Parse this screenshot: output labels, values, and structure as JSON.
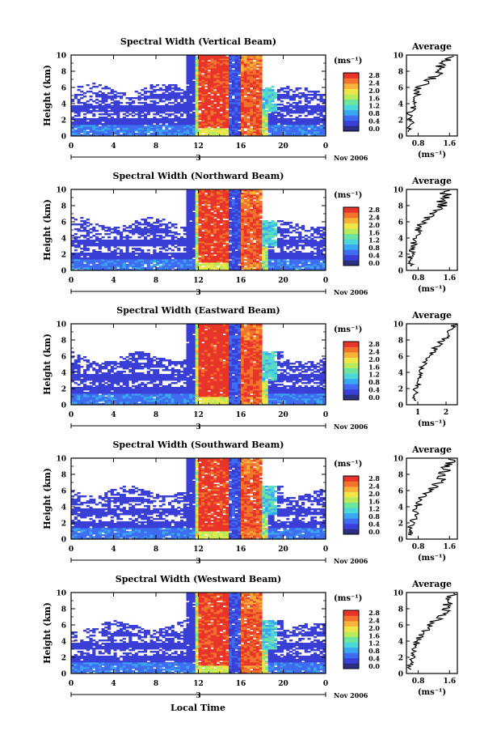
{
  "figure": {
    "xlabel_bottom": "Local Time",
    "avg_title": "Average",
    "units": "(ms⁻¹)",
    "date_label": "Nov 2006",
    "day_label": "3",
    "height_label": "Height (km)"
  },
  "colorbar": {
    "ticks": [
      "2.8",
      "2.4",
      "2.0",
      "1.6",
      "1.2",
      "0.8",
      "0.4",
      "0.0"
    ],
    "colors": [
      "#2b2f7f",
      "#3a3fd6",
      "#3f6cf0",
      "#3aa8f0",
      "#4fd6d9",
      "#6fe3a0",
      "#b8ec5c",
      "#f0e64a",
      "#f7b23a",
      "#f2742c",
      "#e8352a"
    ]
  },
  "chart_data": [
    {
      "type": "heatmap",
      "title": "Spectral Width (Vertical Beam)",
      "x_axis": {
        "range": [
          0,
          24
        ],
        "ticks": [
          "0",
          "4",
          "8",
          "12",
          "16",
          "20",
          "0"
        ],
        "label": "Local Time"
      },
      "y_axis": {
        "range": [
          0,
          10
        ],
        "ticks": [
          "0",
          "2",
          "4",
          "6",
          "8",
          "10"
        ],
        "label": "Height (km)"
      },
      "colorbar": {
        "range": [
          0.0,
          2.8
        ],
        "unit": "(ms⁻¹)"
      },
      "average": {
        "xticks": [
          "0.8",
          "1.6"
        ],
        "xrange": [
          0.5,
          1.8
        ],
        "xlabel": "(ms⁻¹)",
        "title": "Average",
        "profile": [
          {
            "h": 0.5,
            "v": 0.6
          },
          {
            "h": 1,
            "v": 0.55
          },
          {
            "h": 1.5,
            "v": 0.65
          },
          {
            "h": 2,
            "v": 0.6
          },
          {
            "h": 2.5,
            "v": 0.62
          },
          {
            "h": 3,
            "v": 0.6
          },
          {
            "h": 3.5,
            "v": 0.7
          },
          {
            "h": 4,
            "v": 0.65
          },
          {
            "h": 4.5,
            "v": 0.72
          },
          {
            "h": 5,
            "v": 0.75
          },
          {
            "h": 5.5,
            "v": 0.8
          },
          {
            "h": 6,
            "v": 0.85
          },
          {
            "h": 6.5,
            "v": 0.95
          },
          {
            "h": 7,
            "v": 1.1
          },
          {
            "h": 7.5,
            "v": 1.25
          },
          {
            "h": 8,
            "v": 1.4
          },
          {
            "h": 8.5,
            "v": 1.35
          },
          {
            "h": 9,
            "v": 1.5
          },
          {
            "h": 9.5,
            "v": 1.6
          },
          {
            "h": 10,
            "v": 1.7
          }
        ]
      }
    },
    {
      "type": "heatmap",
      "title": "Spectral Width (Northward Beam)",
      "x_axis": {
        "range": [
          0,
          24
        ],
        "ticks": [
          "0",
          "4",
          "8",
          "12",
          "16",
          "20",
          "0"
        ],
        "label": "Local Time"
      },
      "y_axis": {
        "range": [
          0,
          10
        ],
        "ticks": [
          "0",
          "2",
          "4",
          "6",
          "8",
          "10"
        ],
        "label": "Height (km)"
      },
      "colorbar": {
        "range": [
          0.0,
          2.8
        ],
        "unit": "(ms⁻¹)"
      },
      "average": {
        "xticks": [
          "0.8",
          "1.6"
        ],
        "xrange": [
          0.5,
          1.8
        ],
        "xlabel": "(ms⁻¹)",
        "title": "Average",
        "profile": [
          {
            "h": 0.5,
            "v": 0.6
          },
          {
            "h": 1,
            "v": 0.62
          },
          {
            "h": 1.5,
            "v": 0.58
          },
          {
            "h": 2,
            "v": 0.65
          },
          {
            "h": 2.5,
            "v": 0.6
          },
          {
            "h": 3,
            "v": 0.7
          },
          {
            "h": 3.5,
            "v": 0.68
          },
          {
            "h": 4,
            "v": 0.75
          },
          {
            "h": 4.5,
            "v": 0.8
          },
          {
            "h": 5,
            "v": 0.78
          },
          {
            "h": 5.5,
            "v": 0.85
          },
          {
            "h": 6,
            "v": 0.9
          },
          {
            "h": 6.5,
            "v": 1.05
          },
          {
            "h": 7,
            "v": 1.2
          },
          {
            "h": 7.5,
            "v": 1.3
          },
          {
            "h": 8,
            "v": 1.45
          },
          {
            "h": 8.5,
            "v": 1.4
          },
          {
            "h": 9,
            "v": 1.55
          },
          {
            "h": 9.5,
            "v": 1.5
          },
          {
            "h": 10,
            "v": 1.6
          }
        ]
      }
    },
    {
      "type": "heatmap",
      "title": "Spectral Width (Eastward Beam)",
      "x_axis": {
        "range": [
          0,
          24
        ],
        "ticks": [
          "0",
          "4",
          "8",
          "12",
          "16",
          "20",
          "0"
        ],
        "label": "Local Time"
      },
      "y_axis": {
        "range": [
          0,
          10
        ],
        "ticks": [
          "0",
          "2",
          "4",
          "6",
          "8",
          "10"
        ],
        "label": "Height (km)"
      },
      "colorbar": {
        "range": [
          0.0,
          2.8
        ],
        "unit": "(ms⁻¹)"
      },
      "average": {
        "xticks": [
          "1",
          "2"
        ],
        "xrange": [
          0.6,
          2.4
        ],
        "xlabel": "(ms⁻¹)",
        "title": "Average",
        "profile": [
          {
            "h": 0.5,
            "v": 0.9
          },
          {
            "h": 1,
            "v": 0.85
          },
          {
            "h": 1.5,
            "v": 0.95
          },
          {
            "h": 2,
            "v": 0.9
          },
          {
            "h": 2.5,
            "v": 1.0
          },
          {
            "h": 3,
            "v": 1.0
          },
          {
            "h": 3.5,
            "v": 1.05
          },
          {
            "h": 4,
            "v": 1.1
          },
          {
            "h": 4.5,
            "v": 1.15
          },
          {
            "h": 5,
            "v": 1.2
          },
          {
            "h": 5.5,
            "v": 1.3
          },
          {
            "h": 6,
            "v": 1.4
          },
          {
            "h": 6.5,
            "v": 1.5
          },
          {
            "h": 7,
            "v": 1.6
          },
          {
            "h": 7.5,
            "v": 1.75
          },
          {
            "h": 8,
            "v": 1.9
          },
          {
            "h": 8.5,
            "v": 2.0
          },
          {
            "h": 9,
            "v": 2.1
          },
          {
            "h": 9.5,
            "v": 2.2
          },
          {
            "h": 10,
            "v": 2.3
          }
        ]
      }
    },
    {
      "type": "heatmap",
      "title": "Spectral Width (Southward Beam)",
      "x_axis": {
        "range": [
          0,
          24
        ],
        "ticks": [
          "0",
          "4",
          "8",
          "12",
          "16",
          "20",
          "0"
        ],
        "label": "Local Time"
      },
      "y_axis": {
        "range": [
          0,
          10
        ],
        "ticks": [
          "0",
          "2",
          "4",
          "6",
          "8",
          "10"
        ],
        "label": "Height (km)"
      },
      "colorbar": {
        "range": [
          0.0,
          2.8
        ],
        "unit": "(ms⁻¹)"
      },
      "average": {
        "xticks": [
          "0.8",
          "1.6"
        ],
        "xrange": [
          0.5,
          1.8
        ],
        "xlabel": "(ms⁻¹)",
        "title": "Average",
        "profile": [
          {
            "h": 0.5,
            "v": 0.6
          },
          {
            "h": 1,
            "v": 0.62
          },
          {
            "h": 1.5,
            "v": 0.6
          },
          {
            "h": 2,
            "v": 0.65
          },
          {
            "h": 2.5,
            "v": 0.7
          },
          {
            "h": 3,
            "v": 0.72
          },
          {
            "h": 3.5,
            "v": 0.75
          },
          {
            "h": 4,
            "v": 0.8
          },
          {
            "h": 4.5,
            "v": 0.82
          },
          {
            "h": 5,
            "v": 0.9
          },
          {
            "h": 5.5,
            "v": 1.0
          },
          {
            "h": 6,
            "v": 1.1
          },
          {
            "h": 6.5,
            "v": 1.2
          },
          {
            "h": 7,
            "v": 1.3
          },
          {
            "h": 7.5,
            "v": 1.4
          },
          {
            "h": 8,
            "v": 1.45
          },
          {
            "h": 8.5,
            "v": 1.5
          },
          {
            "h": 9,
            "v": 1.55
          },
          {
            "h": 9.5,
            "v": 1.6
          },
          {
            "h": 10,
            "v": 1.65
          }
        ]
      }
    },
    {
      "type": "heatmap",
      "title": "Spectral Width (Westward Beam)",
      "x_axis": {
        "range": [
          0,
          24
        ],
        "ticks": [
          "0",
          "4",
          "8",
          "12",
          "16",
          "20",
          "0"
        ],
        "label": "Local Time"
      },
      "y_axis": {
        "range": [
          0,
          10
        ],
        "ticks": [
          "0",
          "2",
          "4",
          "6",
          "8",
          "10"
        ],
        "label": "Height (km)"
      },
      "colorbar": {
        "range": [
          0.0,
          2.8
        ],
        "unit": "(ms⁻¹)"
      },
      "average": {
        "xticks": [
          "0.8",
          "1.6"
        ],
        "xrange": [
          0.5,
          1.8
        ],
        "xlabel": "(ms⁻¹)",
        "title": "Average",
        "profile": [
          {
            "h": 0.5,
            "v": 0.6
          },
          {
            "h": 1,
            "v": 0.6
          },
          {
            "h": 1.5,
            "v": 0.62
          },
          {
            "h": 2,
            "v": 0.65
          },
          {
            "h": 2.5,
            "v": 0.68
          },
          {
            "h": 3,
            "v": 0.7
          },
          {
            "h": 3.5,
            "v": 0.75
          },
          {
            "h": 4,
            "v": 0.8
          },
          {
            "h": 4.5,
            "v": 0.85
          },
          {
            "h": 5,
            "v": 0.9
          },
          {
            "h": 5.5,
            "v": 1.0
          },
          {
            "h": 6,
            "v": 1.1
          },
          {
            "h": 6.5,
            "v": 1.25
          },
          {
            "h": 7,
            "v": 1.35
          },
          {
            "h": 7.5,
            "v": 1.45
          },
          {
            "h": 8,
            "v": 1.5
          },
          {
            "h": 8.5,
            "v": 1.55
          },
          {
            "h": 9,
            "v": 1.6
          },
          {
            "h": 9.5,
            "v": 1.62
          },
          {
            "h": 10,
            "v": 1.65
          }
        ]
      }
    }
  ]
}
